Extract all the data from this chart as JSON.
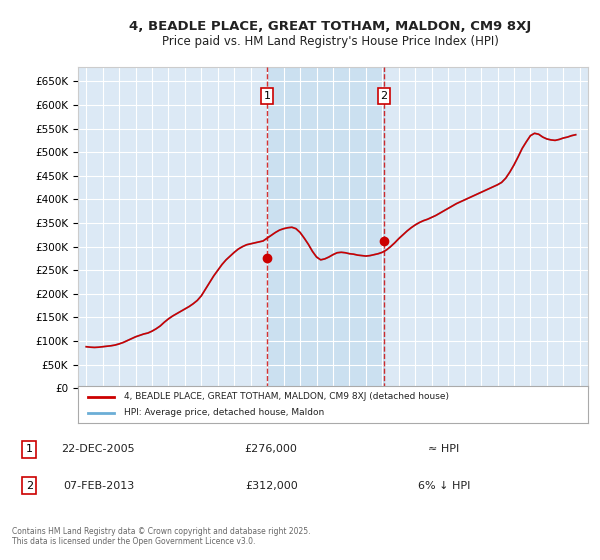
{
  "title": "4, BEADLE PLACE, GREAT TOTHAM, MALDON, CM9 8XJ",
  "subtitle": "Price paid vs. HM Land Registry's House Price Index (HPI)",
  "ylabel": "",
  "xlabel": "",
  "background_color": "#ffffff",
  "plot_bg_color": "#dce9f5",
  "grid_color": "#ffffff",
  "sale1_date": 2005.98,
  "sale1_price": 276000,
  "sale2_date": 2013.1,
  "sale2_price": 312000,
  "legend_label_red": "4, BEADLE PLACE, GREAT TOTHAM, MALDON, CM9 8XJ (detached house)",
  "legend_label_blue": "HPI: Average price, detached house, Maldon",
  "footer": "Contains HM Land Registry data © Crown copyright and database right 2025.\nThis data is licensed under the Open Government Licence v3.0.",
  "table_rows": [
    {
      "num": "1",
      "date": "22-DEC-2005",
      "price": "£276,000",
      "note": "≈ HPI"
    },
    {
      "num": "2",
      "date": "07-FEB-2013",
      "price": "£312,000",
      "note": "6% ↓ HPI"
    }
  ],
  "hpi_years": [
    1995.0,
    1995.25,
    1995.5,
    1995.75,
    1996.0,
    1996.25,
    1996.5,
    1996.75,
    1997.0,
    1997.25,
    1997.5,
    1997.75,
    1998.0,
    1998.25,
    1998.5,
    1998.75,
    1999.0,
    1999.25,
    1999.5,
    1999.75,
    2000.0,
    2000.25,
    2000.5,
    2000.75,
    2001.0,
    2001.25,
    2001.5,
    2001.75,
    2002.0,
    2002.25,
    2002.5,
    2002.75,
    2003.0,
    2003.25,
    2003.5,
    2003.75,
    2004.0,
    2004.25,
    2004.5,
    2004.75,
    2005.0,
    2005.25,
    2005.5,
    2005.75,
    2006.0,
    2006.25,
    2006.5,
    2006.75,
    2007.0,
    2007.25,
    2007.5,
    2007.75,
    2008.0,
    2008.25,
    2008.5,
    2008.75,
    2009.0,
    2009.25,
    2009.5,
    2009.75,
    2010.0,
    2010.25,
    2010.5,
    2010.75,
    2011.0,
    2011.25,
    2011.5,
    2011.75,
    2012.0,
    2012.25,
    2012.5,
    2012.75,
    2013.0,
    2013.25,
    2013.5,
    2013.75,
    2014.0,
    2014.25,
    2014.5,
    2014.75,
    2015.0,
    2015.25,
    2015.5,
    2015.75,
    2016.0,
    2016.25,
    2016.5,
    2016.75,
    2017.0,
    2017.25,
    2017.5,
    2017.75,
    2018.0,
    2018.25,
    2018.5,
    2018.75,
    2019.0,
    2019.25,
    2019.5,
    2019.75,
    2020.0,
    2020.25,
    2020.5,
    2020.75,
    2021.0,
    2021.25,
    2021.5,
    2021.75,
    2022.0,
    2022.25,
    2022.5,
    2022.75,
    2023.0,
    2023.25,
    2023.5,
    2023.75,
    2024.0,
    2024.25,
    2024.5,
    2024.75
  ],
  "hpi_values": [
    88000,
    87000,
    86500,
    87000,
    88000,
    89000,
    90000,
    91500,
    94000,
    97000,
    101000,
    105000,
    109000,
    112000,
    115000,
    117000,
    121000,
    126000,
    132000,
    140000,
    147000,
    153000,
    158000,
    163000,
    168000,
    173000,
    179000,
    186000,
    196000,
    210000,
    224000,
    238000,
    250000,
    262000,
    272000,
    280000,
    288000,
    295000,
    300000,
    304000,
    306000,
    308000,
    310000,
    312000,
    318000,
    324000,
    330000,
    335000,
    338000,
    340000,
    341000,
    338000,
    330000,
    318000,
    305000,
    290000,
    278000,
    272000,
    274000,
    278000,
    283000,
    287000,
    288000,
    287000,
    285000,
    284000,
    282000,
    281000,
    280000,
    281000,
    283000,
    285000,
    288000,
    293000,
    300000,
    308000,
    317000,
    325000,
    333000,
    340000,
    346000,
    351000,
    355000,
    358000,
    362000,
    366000,
    371000,
    376000,
    381000,
    386000,
    391000,
    395000,
    399000,
    403000,
    407000,
    411000,
    415000,
    419000,
    423000,
    427000,
    431000,
    436000,
    445000,
    458000,
    473000,
    490000,
    508000,
    522000,
    535000,
    540000,
    538000,
    532000,
    528000,
    526000,
    525000,
    527000,
    530000,
    532000,
    535000,
    537000
  ],
  "ylim": [
    0,
    680000
  ],
  "xlim": [
    1994.5,
    2025.5
  ],
  "yticks": [
    0,
    50000,
    100000,
    150000,
    200000,
    250000,
    300000,
    350000,
    400000,
    450000,
    500000,
    550000,
    600000,
    650000
  ],
  "xticks": [
    1995,
    1996,
    1997,
    1998,
    1999,
    2000,
    2001,
    2002,
    2003,
    2004,
    2005,
    2006,
    2007,
    2008,
    2009,
    2010,
    2011,
    2012,
    2013,
    2014,
    2015,
    2016,
    2017,
    2018,
    2019,
    2020,
    2021,
    2022,
    2023,
    2024,
    2025
  ]
}
